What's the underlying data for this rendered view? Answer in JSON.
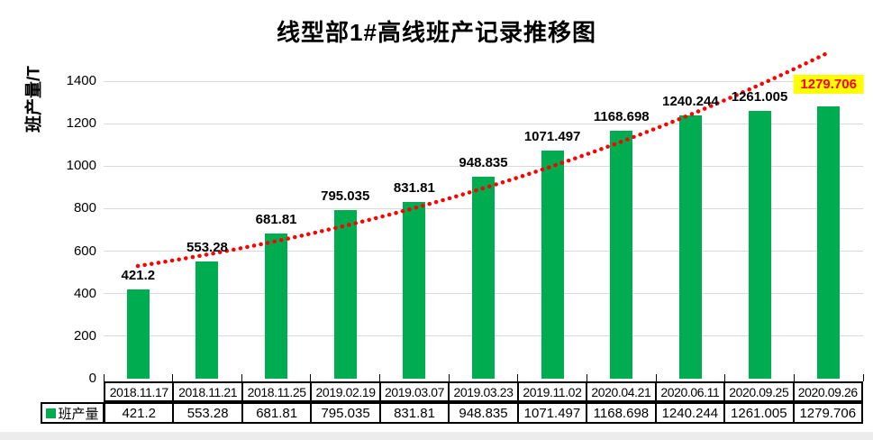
{
  "title": "线型部1#高线班产记录推移图",
  "y_axis": {
    "label": "班产量/T"
  },
  "legend": {
    "series_label": "班产量"
  },
  "chart_data": {
    "type": "bar",
    "title": "线型部1#高线班产记录推移图",
    "xlabel": "",
    "ylabel": "班产量/T",
    "categories": [
      "2018.11.17",
      "2018.11.21",
      "2018.11.25",
      "2019.02.19",
      "2019.03.07",
      "2019.03.23",
      "2019.11.02",
      "2020.04.21",
      "2020.06.11",
      "2020.09.25",
      "2020.09.26"
    ],
    "series": [
      {
        "name": "班产量",
        "values": [
          421.2,
          553.28,
          681.81,
          795.035,
          831.81,
          948.835,
          1071.497,
          1168.698,
          1240.244,
          1261.005,
          1279.706
        ]
      }
    ],
    "data_labels": [
      "421.2",
      "553.28",
      "681.81",
      "795.035",
      "831.81",
      "948.835",
      "1071.497",
      "1168.698",
      "1240.244",
      "1261.005",
      "1279.706"
    ],
    "ylim": [
      0,
      1400
    ],
    "yticks": [
      0,
      200,
      400,
      600,
      800,
      1000,
      1200,
      1400
    ],
    "grid": true,
    "legend_position": "bottom-left-table-header",
    "data_table_shown": true,
    "trendline": {
      "style": "dotted",
      "color": "#FF0000"
    },
    "highlight": {
      "index": 10,
      "background": "#FFFF00",
      "text_color": "#FF0000"
    },
    "colors": {
      "bar": "#00AC50",
      "trendline": "#FF0000",
      "gridline": "#D9D9D9",
      "highlight_bg": "#FFFF00",
      "highlight_text": "#FF0000",
      "label_text": "#000000"
    }
  }
}
